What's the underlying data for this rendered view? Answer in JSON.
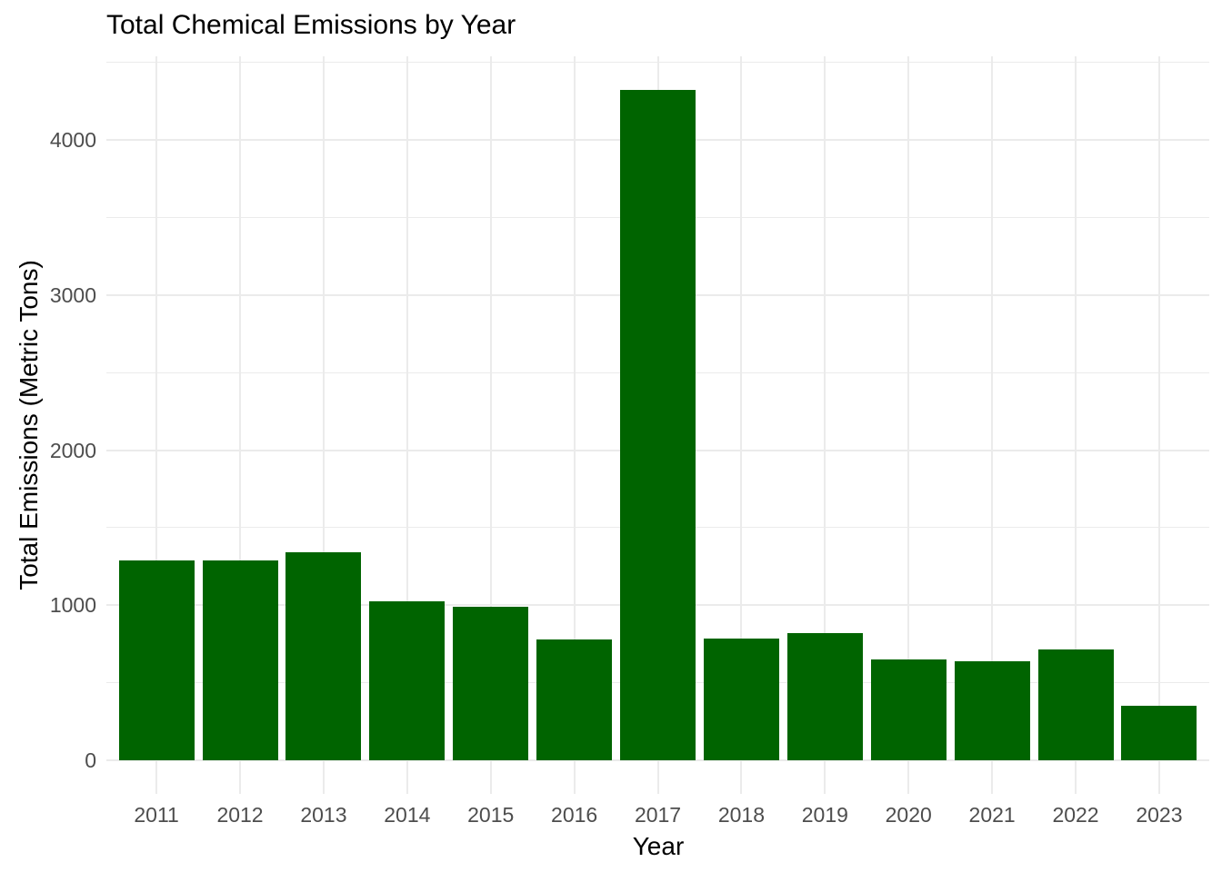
{
  "colors": {
    "background": "#FFFFFF",
    "bar_fill": "#006400",
    "gridline": "#EBEBEB",
    "tick_label": "#4D4D4D",
    "title_text": "#000000"
  },
  "chart_data": {
    "type": "bar",
    "title": "Total Chemical Emissions by Year",
    "xlabel": "Year",
    "ylabel": "Total Emissions (Metric Tons)",
    "categories": [
      "2011",
      "2012",
      "2013",
      "2014",
      "2015",
      "2016",
      "2017",
      "2018",
      "2019",
      "2020",
      "2021",
      "2022",
      "2023"
    ],
    "values": [
      1290,
      1287,
      1340,
      1026,
      989,
      779,
      4322,
      784,
      822,
      648,
      636,
      712,
      351
    ],
    "ytick_values": [
      0,
      1000,
      2000,
      3000,
      4000
    ],
    "ytick_labels": [
      "0",
      "1000",
      "2000",
      "3000",
      "4000"
    ],
    "minor_gridline_values": [
      500,
      1500,
      2500,
      3500,
      4500
    ],
    "ylim": [
      -216,
      4538
    ],
    "grid": true,
    "legend": false,
    "bar_color": "#006400"
  }
}
